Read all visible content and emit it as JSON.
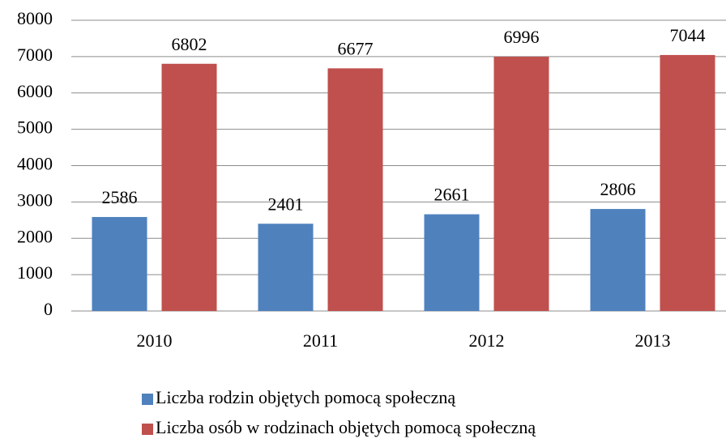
{
  "chart_data": {
    "type": "bar",
    "categories": [
      "2010",
      "2011",
      "2012",
      "2013"
    ],
    "series": [
      {
        "name": "Liczba rodzin objętych pomocą społeczną",
        "color": "#4f81bd",
        "values": [
          2586,
          2401,
          2661,
          2806
        ]
      },
      {
        "name": "Liczba osób w rodzinach objętych pomocą społeczną",
        "color": "#c0504d",
        "values": [
          6802,
          6677,
          6996,
          7044
        ]
      }
    ],
    "ylim": [
      0,
      8000
    ],
    "yticks": [
      0,
      1000,
      2000,
      3000,
      4000,
      5000,
      6000,
      7000,
      8000
    ],
    "grid": true,
    "legend": "bottom"
  }
}
